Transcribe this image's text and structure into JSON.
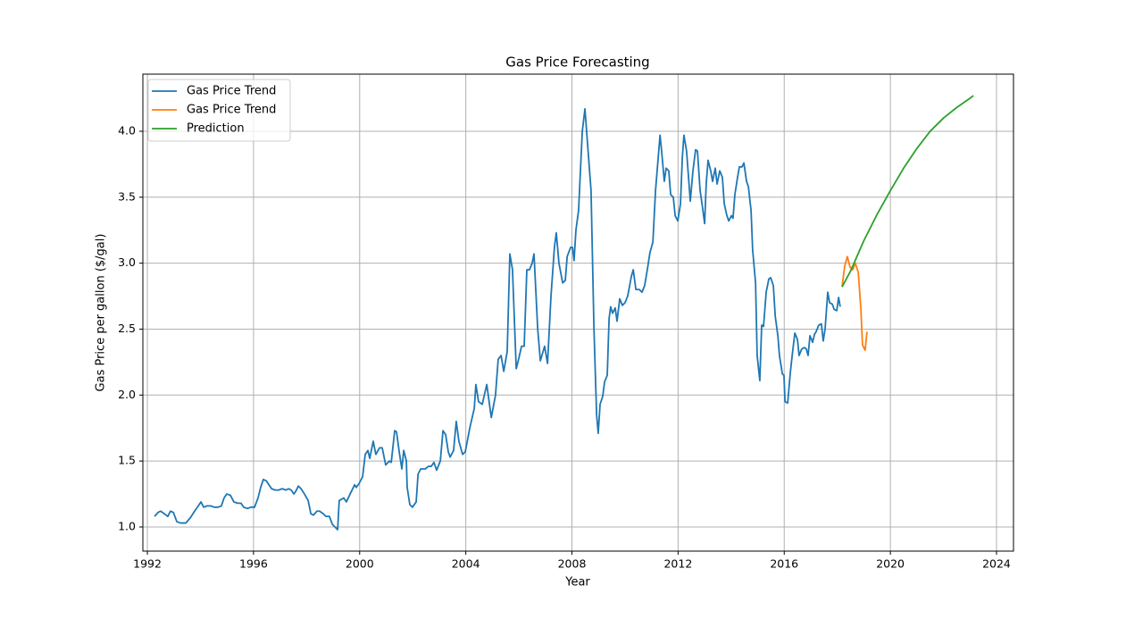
{
  "chart_data": {
    "type": "line",
    "title": "Gas Price Forecasting",
    "x_label": "Year",
    "y_label": "Gas Price per gallon ($/gal)",
    "xlim": [
      1991.83,
      2024.64
    ],
    "ylim": [
      0.817,
      4.433
    ],
    "xticks": [
      1992,
      1996,
      2000,
      2004,
      2008,
      2012,
      2016,
      2020,
      2024
    ],
    "yticks": [
      {
        "value": 1,
        "label": "1.0"
      },
      {
        "value": 1.5,
        "label": "1.5"
      },
      {
        "value": 2,
        "label": "2.0"
      },
      {
        "value": 2.5,
        "label": "2.5"
      },
      {
        "value": 3,
        "label": "3.0"
      },
      {
        "value": 3.5,
        "label": "3.5"
      },
      {
        "value": 4,
        "label": "4.0"
      }
    ],
    "grid": true,
    "legend": "upper left",
    "series": [
      {
        "name": "Gas Price Trend",
        "color": "#1f77b4",
        "x": [
          1992.27,
          1992.4,
          1992.5,
          1992.64,
          1992.77,
          1992.87,
          1992.98,
          1993.11,
          1993.25,
          1993.45,
          1993.62,
          1993.78,
          1993.92,
          1994.02,
          1994.12,
          1994.25,
          1994.39,
          1994.52,
          1994.66,
          1994.79,
          1994.89,
          1994.99,
          1995.13,
          1995.26,
          1995.4,
          1995.53,
          1995.63,
          1995.77,
          1995.9,
          1996.04,
          1996.17,
          1996.27,
          1996.37,
          1996.48,
          1996.58,
          1996.68,
          1996.81,
          1996.95,
          1997.08,
          1997.22,
          1997.32,
          1997.42,
          1997.52,
          1997.59,
          1997.69,
          1997.79,
          1997.92,
          1998.06,
          1998.16,
          1998.26,
          1998.39,
          1998.49,
          1998.63,
          1998.73,
          1998.86,
          1998.97,
          1999.07,
          1999.17,
          1999.23,
          1999.4,
          1999.5,
          1999.64,
          1999.81,
          1999.87,
          1999.98,
          2000.11,
          2000.21,
          2000.31,
          2000.38,
          2000.51,
          2000.61,
          2000.75,
          2000.85,
          2000.98,
          2001.12,
          2001.19,
          2001.32,
          2001.39,
          2001.49,
          2001.59,
          2001.66,
          2001.76,
          2001.79,
          2001.89,
          2001.99,
          2002.13,
          2002.2,
          2002.3,
          2002.47,
          2002.6,
          2002.7,
          2002.8,
          2002.9,
          2003.04,
          2003.14,
          2003.24,
          2003.34,
          2003.41,
          2003.54,
          2003.64,
          2003.74,
          2003.88,
          2003.98,
          2004.15,
          2004.32,
          2004.38,
          2004.48,
          2004.62,
          2004.79,
          2004.96,
          2005.12,
          2005.22,
          2005.33,
          2005.43,
          2005.56,
          2005.66,
          2005.76,
          2005.9,
          2006.0,
          2006.1,
          2006.2,
          2006.3,
          2006.4,
          2006.5,
          2006.57,
          2006.71,
          2006.81,
          2006.97,
          2007.08,
          2007.21,
          2007.34,
          2007.41,
          2007.51,
          2007.65,
          2007.75,
          2007.82,
          2007.95,
          2008.02,
          2008.08,
          2008.15,
          2008.25,
          2008.39,
          2008.49,
          2008.59,
          2008.72,
          2008.83,
          2008.93,
          2008.99,
          2009.06,
          2009.16,
          2009.23,
          2009.33,
          2009.4,
          2009.46,
          2009.53,
          2009.63,
          2009.7,
          2009.8,
          2009.9,
          2010.0,
          2010.1,
          2010.24,
          2010.31,
          2010.41,
          2010.54,
          2010.64,
          2010.74,
          2010.84,
          2010.94,
          2011.05,
          2011.15,
          2011.21,
          2011.32,
          2011.38,
          2011.48,
          2011.55,
          2011.65,
          2011.72,
          2011.82,
          2011.89,
          2011.99,
          2012.09,
          2012.16,
          2012.22,
          2012.32,
          2012.46,
          2012.56,
          2012.66,
          2012.73,
          2012.83,
          2012.93,
          2013.0,
          2013.06,
          2013.13,
          2013.23,
          2013.3,
          2013.4,
          2013.47,
          2013.57,
          2013.67,
          2013.74,
          2013.84,
          2013.91,
          2014.01,
          2014.07,
          2014.14,
          2014.24,
          2014.31,
          2014.41,
          2014.48,
          2014.58,
          2014.65,
          2014.75,
          2014.81,
          2014.92,
          2014.98,
          2015.08,
          2015.15,
          2015.22,
          2015.32,
          2015.42,
          2015.49,
          2015.59,
          2015.66,
          2015.76,
          2015.82,
          2015.93,
          2015.99,
          2016.03,
          2016.13,
          2016.23,
          2016.3,
          2016.4,
          2016.5,
          2016.56,
          2016.66,
          2016.77,
          2016.83,
          2016.9,
          2016.97,
          2017.07,
          2017.14,
          2017.2,
          2017.3,
          2017.4,
          2017.47,
          2017.54,
          2017.64,
          2017.71,
          2017.81,
          2017.88,
          2017.98,
          2018.05,
          2018.11
        ],
        "values": [
          1.08,
          1.11,
          1.12,
          1.1,
          1.08,
          1.12,
          1.11,
          1.04,
          1.03,
          1.03,
          1.07,
          1.12,
          1.16,
          1.19,
          1.15,
          1.16,
          1.16,
          1.15,
          1.15,
          1.16,
          1.22,
          1.25,
          1.24,
          1.19,
          1.18,
          1.18,
          1.15,
          1.14,
          1.15,
          1.15,
          1.22,
          1.3,
          1.36,
          1.35,
          1.32,
          1.29,
          1.28,
          1.28,
          1.29,
          1.28,
          1.29,
          1.28,
          1.25,
          1.27,
          1.31,
          1.29,
          1.25,
          1.2,
          1.1,
          1.09,
          1.12,
          1.12,
          1.1,
          1.08,
          1.08,
          1.02,
          1.0,
          0.98,
          1.2,
          1.22,
          1.19,
          1.25,
          1.32,
          1.3,
          1.33,
          1.38,
          1.55,
          1.58,
          1.52,
          1.65,
          1.55,
          1.6,
          1.6,
          1.47,
          1.5,
          1.49,
          1.73,
          1.72,
          1.57,
          1.44,
          1.58,
          1.5,
          1.3,
          1.17,
          1.15,
          1.19,
          1.4,
          1.44,
          1.44,
          1.46,
          1.46,
          1.49,
          1.43,
          1.5,
          1.73,
          1.7,
          1.57,
          1.53,
          1.58,
          1.8,
          1.65,
          1.55,
          1.57,
          1.75,
          1.9,
          2.08,
          1.95,
          1.93,
          2.08,
          1.83,
          2.0,
          2.27,
          2.3,
          2.18,
          2.33,
          3.07,
          2.95,
          2.2,
          2.28,
          2.37,
          2.37,
          2.95,
          2.95,
          3.0,
          3.07,
          2.5,
          2.26,
          2.37,
          2.24,
          2.75,
          3.12,
          3.23,
          3.0,
          2.85,
          2.87,
          3.05,
          3.12,
          3.12,
          3.02,
          3.25,
          3.4,
          4.0,
          4.17,
          3.9,
          3.55,
          2.5,
          1.85,
          1.71,
          1.93,
          1.99,
          2.1,
          2.15,
          2.58,
          2.67,
          2.62,
          2.66,
          2.56,
          2.73,
          2.68,
          2.7,
          2.75,
          2.9,
          2.95,
          2.8,
          2.8,
          2.78,
          2.83,
          2.95,
          3.08,
          3.16,
          3.55,
          3.7,
          3.97,
          3.85,
          3.62,
          3.72,
          3.7,
          3.52,
          3.5,
          3.36,
          3.32,
          3.45,
          3.8,
          3.97,
          3.85,
          3.47,
          3.7,
          3.86,
          3.85,
          3.55,
          3.41,
          3.3,
          3.6,
          3.78,
          3.7,
          3.62,
          3.72,
          3.6,
          3.7,
          3.65,
          3.45,
          3.36,
          3.32,
          3.36,
          3.34,
          3.52,
          3.65,
          3.73,
          3.73,
          3.76,
          3.62,
          3.58,
          3.4,
          3.1,
          2.85,
          2.3,
          2.11,
          2.53,
          2.52,
          2.78,
          2.88,
          2.89,
          2.83,
          2.6,
          2.45,
          2.3,
          2.16,
          2.15,
          1.95,
          1.94,
          2.17,
          2.3,
          2.47,
          2.42,
          2.3,
          2.35,
          2.36,
          2.35,
          2.3,
          2.45,
          2.4,
          2.46,
          2.48,
          2.53,
          2.54,
          2.41,
          2.5,
          2.78,
          2.7,
          2.69,
          2.65,
          2.64,
          2.74,
          2.67
        ]
      },
      {
        "name": "Gas Price Trend",
        "color": "#ff7f0e",
        "x": [
          2018.18,
          2018.28,
          2018.38,
          2018.48,
          2018.58,
          2018.68,
          2018.79,
          2018.89,
          2018.95,
          2019.05,
          2019.12
        ],
        "values": [
          2.82,
          2.98,
          3.05,
          2.97,
          2.95,
          3.0,
          2.93,
          2.65,
          2.38,
          2.34,
          2.48
        ]
      },
      {
        "name": "Prediction",
        "color": "#2ca02c",
        "x": [
          2018.18,
          2018.5,
          2019,
          2019.5,
          2020,
          2020.5,
          2021,
          2021.5,
          2022,
          2022.5,
          2023,
          2023.13
        ],
        "values": [
          2.82,
          2.94,
          3.17,
          3.37,
          3.55,
          3.72,
          3.87,
          4.0,
          4.1,
          4.18,
          4.25,
          4.27
        ]
      }
    ]
  }
}
